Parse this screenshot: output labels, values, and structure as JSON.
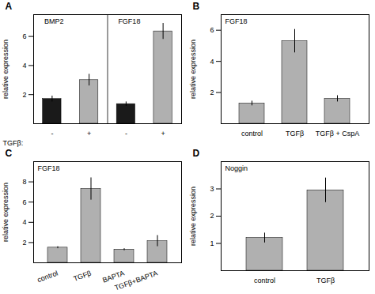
{
  "chart_data": [
    {
      "type": "bar",
      "title": "A",
      "annotations": [
        "BMP2",
        "FGF18"
      ],
      "categories": [
        "-",
        "+",
        "-",
        "+"
      ],
      "values": [
        1.7,
        3.0,
        1.35,
        6.35
      ],
      "errors": [
        0.2,
        0.4,
        0.15,
        0.55
      ],
      "colors": [
        "#1a1a1a",
        "#b0b0b0",
        "#1a1a1a",
        "#b0b0b0"
      ],
      "xlabel": "TGFβ:",
      "ylabel": "relative expression",
      "ylim": [
        0,
        7.5
      ],
      "yticks": [
        2,
        4,
        6
      ]
    },
    {
      "type": "bar",
      "title": "B",
      "annotations": [
        "FGF18"
      ],
      "categories": [
        "control",
        "TGFβ",
        "TGFβ + CspA"
      ],
      "values": [
        1.3,
        5.3,
        1.6
      ],
      "errors": [
        0.15,
        0.75,
        0.2
      ],
      "color": "#b0b0b0",
      "ylabel": "relative expression",
      "ylim": [
        0,
        7.0
      ],
      "yticks": [
        2,
        4,
        6
      ]
    },
    {
      "type": "bar",
      "title": "C",
      "annotations": [
        "FGF18"
      ],
      "categories": [
        "control",
        "TGFβ",
        "BAPTA",
        "TGFβ+BAPTA"
      ],
      "values": [
        1.5,
        7.3,
        1.3,
        2.15
      ],
      "errors": [
        0.1,
        1.1,
        0.1,
        0.55
      ],
      "color": "#b0b0b0",
      "ylabel": "relative expression",
      "ylim": [
        0,
        10.0
      ],
      "yticks": [
        2,
        4,
        6,
        8
      ]
    },
    {
      "type": "bar",
      "title": "D",
      "annotations": [
        "Noggin"
      ],
      "categories": [
        "control",
        "TGFβ"
      ],
      "values": [
        1.2,
        2.95
      ],
      "errors": [
        0.18,
        0.45
      ],
      "color": "#b0b0b0",
      "ylabel": "relative expression",
      "ylim": [
        0,
        4.0
      ],
      "yticks": [
        1,
        2,
        3
      ]
    }
  ]
}
